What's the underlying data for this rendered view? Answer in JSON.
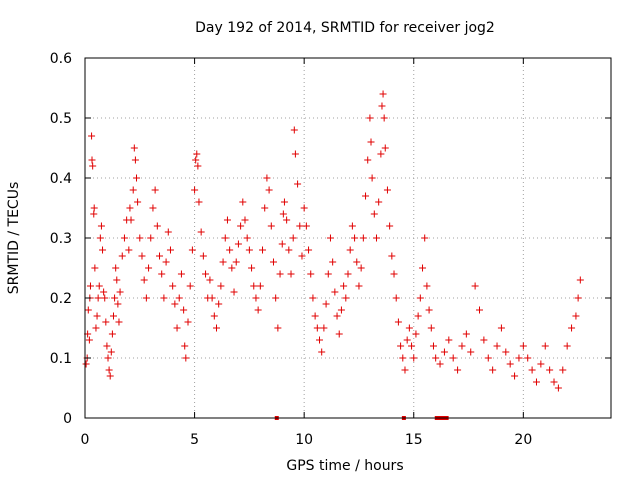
{
  "chart_data": {
    "type": "scatter",
    "title": "Day 192 of 2014, SRMTID for receiver jog2",
    "xlabel": "GPS time / hours",
    "ylabel": "SRMTID / TECUs",
    "xlim": [
      0,
      24
    ],
    "ylim": [
      0,
      0.6
    ],
    "x_ticks": [
      0,
      5,
      10,
      15,
      20
    ],
    "x_tick_labels": [
      "0",
      "5",
      "10",
      "15",
      "20"
    ],
    "y_ticks": [
      0,
      0.1,
      0.2,
      0.3,
      0.4,
      0.5,
      0.6
    ],
    "y_tick_labels": [
      "0",
      "0.1",
      "0.2",
      "0.3",
      "0.4",
      "0.5",
      "0.6"
    ],
    "grid": true,
    "marker": "+",
    "color": "#e00000",
    "series": [
      {
        "name": "SRMTID",
        "points": [
          [
            0.05,
            0.09
          ],
          [
            0.1,
            0.1
          ],
          [
            0.12,
            0.14
          ],
          [
            0.15,
            0.18
          ],
          [
            0.2,
            0.13
          ],
          [
            0.22,
            0.2
          ],
          [
            0.25,
            0.22
          ],
          [
            0.3,
            0.47
          ],
          [
            0.32,
            0.43
          ],
          [
            0.35,
            0.42
          ],
          [
            0.4,
            0.34
          ],
          [
            0.42,
            0.35
          ],
          [
            0.45,
            0.25
          ],
          [
            0.5,
            0.15
          ],
          [
            0.55,
            0.17
          ],
          [
            0.6,
            0.2
          ],
          [
            0.65,
            0.22
          ],
          [
            0.7,
            0.3
          ],
          [
            0.75,
            0.32
          ],
          [
            0.8,
            0.28
          ],
          [
            0.85,
            0.21
          ],
          [
            0.9,
            0.2
          ],
          [
            0.95,
            0.16
          ],
          [
            1.0,
            0.12
          ],
          [
            1.05,
            0.1
          ],
          [
            1.1,
            0.08
          ],
          [
            1.15,
            0.07
          ],
          [
            1.2,
            0.11
          ],
          [
            1.25,
            0.14
          ],
          [
            1.3,
            0.17
          ],
          [
            1.35,
            0.2
          ],
          [
            1.4,
            0.25
          ],
          [
            1.45,
            0.23
          ],
          [
            1.5,
            0.19
          ],
          [
            1.55,
            0.16
          ],
          [
            1.6,
            0.21
          ],
          [
            1.7,
            0.27
          ],
          [
            1.8,
            0.3
          ],
          [
            1.9,
            0.33
          ],
          [
            2.0,
            0.28
          ],
          [
            2.05,
            0.35
          ],
          [
            2.1,
            0.33
          ],
          [
            2.2,
            0.38
          ],
          [
            2.25,
            0.45
          ],
          [
            2.3,
            0.43
          ],
          [
            2.35,
            0.4
          ],
          [
            2.4,
            0.36
          ],
          [
            2.5,
            0.3
          ],
          [
            2.6,
            0.27
          ],
          [
            2.7,
            0.23
          ],
          [
            2.8,
            0.2
          ],
          [
            2.9,
            0.25
          ],
          [
            3.0,
            0.3
          ],
          [
            3.1,
            0.35
          ],
          [
            3.2,
            0.38
          ],
          [
            3.3,
            0.32
          ],
          [
            3.4,
            0.27
          ],
          [
            3.5,
            0.24
          ],
          [
            3.6,
            0.2
          ],
          [
            3.7,
            0.26
          ],
          [
            3.8,
            0.31
          ],
          [
            3.9,
            0.28
          ],
          [
            4.0,
            0.22
          ],
          [
            4.1,
            0.19
          ],
          [
            4.2,
            0.15
          ],
          [
            4.3,
            0.2
          ],
          [
            4.4,
            0.24
          ],
          [
            4.5,
            0.18
          ],
          [
            4.55,
            0.12
          ],
          [
            4.6,
            0.1
          ],
          [
            4.7,
            0.16
          ],
          [
            4.8,
            0.22
          ],
          [
            4.9,
            0.28
          ],
          [
            5.0,
            0.38
          ],
          [
            5.05,
            0.43
          ],
          [
            5.1,
            0.44
          ],
          [
            5.15,
            0.42
          ],
          [
            5.2,
            0.36
          ],
          [
            5.3,
            0.31
          ],
          [
            5.4,
            0.27
          ],
          [
            5.5,
            0.24
          ],
          [
            5.6,
            0.2
          ],
          [
            5.7,
            0.23
          ],
          [
            5.8,
            0.2
          ],
          [
            5.9,
            0.17
          ],
          [
            6.0,
            0.15
          ],
          [
            6.1,
            0.19
          ],
          [
            6.2,
            0.22
          ],
          [
            6.3,
            0.26
          ],
          [
            6.4,
            0.3
          ],
          [
            6.5,
            0.33
          ],
          [
            6.6,
            0.28
          ],
          [
            6.7,
            0.25
          ],
          [
            6.8,
            0.21
          ],
          [
            6.9,
            0.26
          ],
          [
            7.0,
            0.29
          ],
          [
            7.1,
            0.32
          ],
          [
            7.2,
            0.36
          ],
          [
            7.3,
            0.33
          ],
          [
            7.4,
            0.3
          ],
          [
            7.5,
            0.28
          ],
          [
            7.6,
            0.25
          ],
          [
            7.7,
            0.22
          ],
          [
            7.8,
            0.2
          ],
          [
            7.9,
            0.18
          ],
          [
            8.0,
            0.22
          ],
          [
            8.1,
            0.28
          ],
          [
            8.2,
            0.35
          ],
          [
            8.3,
            0.4
          ],
          [
            8.4,
            0.38
          ],
          [
            8.5,
            0.32
          ],
          [
            8.6,
            0.26
          ],
          [
            8.7,
            0.2
          ],
          [
            8.8,
            0.15
          ],
          [
            8.9,
            0.24
          ],
          [
            9.0,
            0.29
          ],
          [
            9.05,
            0.34
          ],
          [
            9.1,
            0.36
          ],
          [
            9.2,
            0.33
          ],
          [
            9.3,
            0.28
          ],
          [
            9.4,
            0.24
          ],
          [
            9.5,
            0.3
          ],
          [
            9.55,
            0.48
          ],
          [
            9.6,
            0.44
          ],
          [
            9.7,
            0.39
          ],
          [
            9.8,
            0.32
          ],
          [
            9.9,
            0.27
          ],
          [
            10.0,
            0.35
          ],
          [
            10.1,
            0.32
          ],
          [
            10.2,
            0.28
          ],
          [
            10.3,
            0.24
          ],
          [
            10.4,
            0.2
          ],
          [
            10.5,
            0.17
          ],
          [
            10.6,
            0.15
          ],
          [
            10.7,
            0.13
          ],
          [
            10.8,
            0.11
          ],
          [
            10.9,
            0.15
          ],
          [
            11.0,
            0.19
          ],
          [
            11.1,
            0.24
          ],
          [
            11.2,
            0.3
          ],
          [
            11.3,
            0.26
          ],
          [
            11.4,
            0.21
          ],
          [
            11.5,
            0.17
          ],
          [
            11.6,
            0.14
          ],
          [
            11.7,
            0.18
          ],
          [
            11.8,
            0.22
          ],
          [
            11.9,
            0.2
          ],
          [
            12.0,
            0.24
          ],
          [
            12.1,
            0.28
          ],
          [
            12.2,
            0.32
          ],
          [
            12.3,
            0.3
          ],
          [
            12.4,
            0.26
          ],
          [
            12.5,
            0.22
          ],
          [
            12.6,
            0.25
          ],
          [
            12.7,
            0.3
          ],
          [
            12.8,
            0.37
          ],
          [
            12.9,
            0.43
          ],
          [
            13.0,
            0.5
          ],
          [
            13.05,
            0.46
          ],
          [
            13.1,
            0.4
          ],
          [
            13.2,
            0.34
          ],
          [
            13.3,
            0.3
          ],
          [
            13.4,
            0.36
          ],
          [
            13.5,
            0.44
          ],
          [
            13.55,
            0.52
          ],
          [
            13.6,
            0.54
          ],
          [
            13.65,
            0.5
          ],
          [
            13.7,
            0.45
          ],
          [
            13.8,
            0.38
          ],
          [
            13.9,
            0.32
          ],
          [
            14.0,
            0.27
          ],
          [
            14.1,
            0.24
          ],
          [
            14.2,
            0.2
          ],
          [
            14.3,
            0.16
          ],
          [
            14.4,
            0.12
          ],
          [
            14.5,
            0.1
          ],
          [
            14.6,
            0.08
          ],
          [
            14.7,
            0.13
          ],
          [
            14.8,
            0.15
          ],
          [
            14.9,
            0.12
          ],
          [
            15.0,
            0.1
          ],
          [
            15.1,
            0.14
          ],
          [
            15.2,
            0.17
          ],
          [
            15.3,
            0.2
          ],
          [
            15.4,
            0.25
          ],
          [
            15.5,
            0.3
          ],
          [
            15.6,
            0.22
          ],
          [
            15.7,
            0.18
          ],
          [
            15.8,
            0.15
          ],
          [
            15.9,
            0.12
          ],
          [
            16.0,
            0.1
          ],
          [
            16.2,
            0.09
          ],
          [
            16.4,
            0.11
          ],
          [
            16.6,
            0.13
          ],
          [
            16.8,
            0.1
          ],
          [
            17.0,
            0.08
          ],
          [
            17.2,
            0.12
          ],
          [
            17.4,
            0.14
          ],
          [
            17.6,
            0.11
          ],
          [
            17.8,
            0.22
          ],
          [
            18.0,
            0.18
          ],
          [
            18.2,
            0.13
          ],
          [
            18.4,
            0.1
          ],
          [
            18.6,
            0.08
          ],
          [
            18.8,
            0.12
          ],
          [
            19.0,
            0.15
          ],
          [
            19.2,
            0.11
          ],
          [
            19.4,
            0.09
          ],
          [
            19.6,
            0.07
          ],
          [
            19.8,
            0.1
          ],
          [
            20.0,
            0.12
          ],
          [
            20.2,
            0.1
          ],
          [
            20.4,
            0.08
          ],
          [
            20.6,
            0.06
          ],
          [
            20.8,
            0.09
          ],
          [
            21.0,
            0.12
          ],
          [
            21.2,
            0.08
          ],
          [
            21.4,
            0.06
          ],
          [
            21.6,
            0.05
          ],
          [
            21.8,
            0.08
          ],
          [
            22.0,
            0.12
          ],
          [
            22.2,
            0.15
          ],
          [
            22.4,
            0.17
          ],
          [
            22.5,
            0.2
          ],
          [
            22.6,
            0.23
          ]
        ]
      }
    ],
    "gap_markers_x": [
      8.75,
      14.55,
      16.05,
      16.2,
      16.35,
      16.5
    ]
  }
}
